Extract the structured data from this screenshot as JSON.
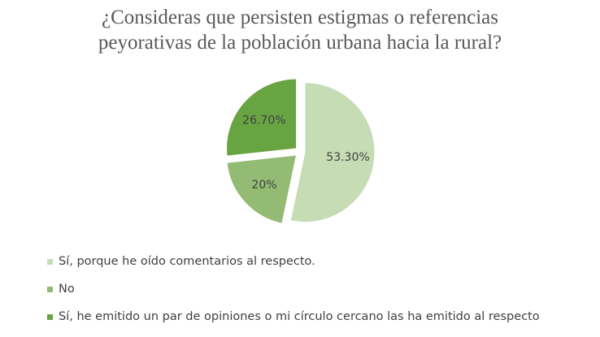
{
  "chart_data": {
    "type": "pie",
    "title_lines": [
      "¿Consideras que persisten estigmas o referencias",
      "peyorativas de la población urbana hacia la rural?"
    ],
    "slices": [
      {
        "label": "Sí, porque he oído comentarios al respecto.",
        "value": 53.3,
        "value_label": "53.30%",
        "color": "#c5dcb4"
      },
      {
        "label": "No",
        "value": 20.0,
        "value_label": "20%",
        "color": "#93bb73"
      },
      {
        "label": "Sí, he emitido un par de opiniones o mi círculo cercano las ha emitido al respecto",
        "value": 26.7,
        "value_label": "26.70%",
        "color": "#69a443"
      }
    ],
    "legend_position": "bottom",
    "exploded": true
  }
}
